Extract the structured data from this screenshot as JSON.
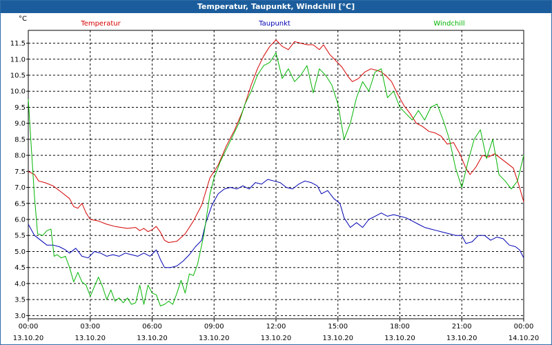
{
  "window": {
    "title": "Temperatur, Taupunkt, Windchill [°C]"
  },
  "colors": {
    "titlebar": "#1b5d9c",
    "temperatur": "#d40000",
    "taupunkt": "#0000b4",
    "windchill": "#00b400",
    "grid": "#000000"
  },
  "chart_data": {
    "type": "line",
    "title": "Temperatur, Taupunkt, Windchill [°C]",
    "ylabel": "°C",
    "xlabel": "",
    "ylim": [
      2.9,
      11.9
    ],
    "xlim": [
      0,
      24
    ],
    "grid": true,
    "legend_placement": "top",
    "y_ticks": [
      "3.0",
      "3.5",
      "4.0",
      "4.5",
      "5.0",
      "5.5",
      "6.0",
      "6.5",
      "7.0",
      "7.5",
      "8.0",
      "8.5",
      "9.0",
      "9.5",
      "10.0",
      "10.5",
      "11.0",
      "11.5"
    ],
    "x_ticks": [
      {
        "time": "00:00",
        "date": "13.10.20"
      },
      {
        "time": "03:00",
        "date": "13.10.20"
      },
      {
        "time": "06:00",
        "date": "13.10.20"
      },
      {
        "time": "09:00",
        "date": "13.10.20"
      },
      {
        "time": "12:00",
        "date": "13.10.20"
      },
      {
        "time": "15:00",
        "date": "13.10.20"
      },
      {
        "time": "18:00",
        "date": "13.10.20"
      },
      {
        "time": "21:00",
        "date": "13.10.20"
      },
      {
        "time": "00:00",
        "date": "14.10.20"
      }
    ],
    "series": [
      {
        "name": "Temperatur",
        "color": "#d40000",
        "points": [
          [
            0,
            7.5
          ],
          [
            0.3,
            7.4
          ],
          [
            0.5,
            7.2
          ],
          [
            0.8,
            7.15
          ],
          [
            1.2,
            7.05
          ],
          [
            1.6,
            6.85
          ],
          [
            2.0,
            6.65
          ],
          [
            2.2,
            6.4
          ],
          [
            2.4,
            6.35
          ],
          [
            2.6,
            6.5
          ],
          [
            2.8,
            6.2
          ],
          [
            3.0,
            6.0
          ],
          [
            3.4,
            5.95
          ],
          [
            3.8,
            5.85
          ],
          [
            4.2,
            5.78
          ],
          [
            4.8,
            5.72
          ],
          [
            5.2,
            5.75
          ],
          [
            5.4,
            5.65
          ],
          [
            5.6,
            5.72
          ],
          [
            5.8,
            5.62
          ],
          [
            6.0,
            5.68
          ],
          [
            6.2,
            5.78
          ],
          [
            6.4,
            5.6
          ],
          [
            6.6,
            5.35
          ],
          [
            6.8,
            5.28
          ],
          [
            7.2,
            5.32
          ],
          [
            7.6,
            5.55
          ],
          [
            8.0,
            5.95
          ],
          [
            8.4,
            6.45
          ],
          [
            8.8,
            7.3
          ],
          [
            9.2,
            7.7
          ],
          [
            9.6,
            8.3
          ],
          [
            10.0,
            8.8
          ],
          [
            10.4,
            9.4
          ],
          [
            10.8,
            10.2
          ],
          [
            11.1,
            10.7
          ],
          [
            11.4,
            11.1
          ],
          [
            11.7,
            11.4
          ],
          [
            12.0,
            11.6
          ],
          [
            12.3,
            11.4
          ],
          [
            12.6,
            11.3
          ],
          [
            12.9,
            11.55
          ],
          [
            13.2,
            11.5
          ],
          [
            13.5,
            11.45
          ],
          [
            13.8,
            11.45
          ],
          [
            14.1,
            11.3
          ],
          [
            14.3,
            11.45
          ],
          [
            14.6,
            11.15
          ],
          [
            14.9,
            10.95
          ],
          [
            15.2,
            10.75
          ],
          [
            15.5,
            10.45
          ],
          [
            15.7,
            10.3
          ],
          [
            16.0,
            10.4
          ],
          [
            16.3,
            10.6
          ],
          [
            16.6,
            10.7
          ],
          [
            16.9,
            10.65
          ],
          [
            17.1,
            10.6
          ],
          [
            17.3,
            10.5
          ],
          [
            17.6,
            10.3
          ],
          [
            17.9,
            9.9
          ],
          [
            18.2,
            9.55
          ],
          [
            18.5,
            9.3
          ],
          [
            18.8,
            9.0
          ],
          [
            19.1,
            8.9
          ],
          [
            19.4,
            8.75
          ],
          [
            19.7,
            8.7
          ],
          [
            20.0,
            8.6
          ],
          [
            20.3,
            8.35
          ],
          [
            20.6,
            8.4
          ],
          [
            20.9,
            8.05
          ],
          [
            21.2,
            7.6
          ],
          [
            21.4,
            7.4
          ],
          [
            21.7,
            7.65
          ],
          [
            22.0,
            8.0
          ],
          [
            22.3,
            7.95
          ],
          [
            22.6,
            8.05
          ],
          [
            22.9,
            7.9
          ],
          [
            23.2,
            7.75
          ],
          [
            23.5,
            7.6
          ],
          [
            23.8,
            7.0
          ],
          [
            24.0,
            6.55
          ]
        ]
      },
      {
        "name": "Taupunkt",
        "color": "#0000b4",
        "points": [
          [
            0,
            5.85
          ],
          [
            0.3,
            5.5
          ],
          [
            0.6,
            5.35
          ],
          [
            0.9,
            5.2
          ],
          [
            1.2,
            5.2
          ],
          [
            1.5,
            5.15
          ],
          [
            1.8,
            5.05
          ],
          [
            2.0,
            4.95
          ],
          [
            2.3,
            5.1
          ],
          [
            2.6,
            4.85
          ],
          [
            2.9,
            4.8
          ],
          [
            3.2,
            5.0
          ],
          [
            3.5,
            4.95
          ],
          [
            3.8,
            4.85
          ],
          [
            4.1,
            4.9
          ],
          [
            4.4,
            4.85
          ],
          [
            4.7,
            4.95
          ],
          [
            5.0,
            4.9
          ],
          [
            5.3,
            4.85
          ],
          [
            5.6,
            4.95
          ],
          [
            5.9,
            4.85
          ],
          [
            6.2,
            5.05
          ],
          [
            6.4,
            4.75
          ],
          [
            6.6,
            4.5
          ],
          [
            6.9,
            4.5
          ],
          [
            7.2,
            4.55
          ],
          [
            7.5,
            4.7
          ],
          [
            7.8,
            4.9
          ],
          [
            8.1,
            5.15
          ],
          [
            8.4,
            5.35
          ],
          [
            8.6,
            5.9
          ],
          [
            8.9,
            6.45
          ],
          [
            9.2,
            6.8
          ],
          [
            9.5,
            6.95
          ],
          [
            9.8,
            7.0
          ],
          [
            10.1,
            6.95
          ],
          [
            10.4,
            7.05
          ],
          [
            10.7,
            6.95
          ],
          [
            11.0,
            7.15
          ],
          [
            11.3,
            7.1
          ],
          [
            11.6,
            7.25
          ],
          [
            11.9,
            7.2
          ],
          [
            12.2,
            7.15
          ],
          [
            12.5,
            7.0
          ],
          [
            12.8,
            6.95
          ],
          [
            13.1,
            7.1
          ],
          [
            13.4,
            7.2
          ],
          [
            13.7,
            7.15
          ],
          [
            14.0,
            7.05
          ],
          [
            14.2,
            6.8
          ],
          [
            14.5,
            6.9
          ],
          [
            14.8,
            6.65
          ],
          [
            15.1,
            6.5
          ],
          [
            15.3,
            6.05
          ],
          [
            15.6,
            5.75
          ],
          [
            15.9,
            5.9
          ],
          [
            16.2,
            5.75
          ],
          [
            16.5,
            6.0
          ],
          [
            16.8,
            6.1
          ],
          [
            17.1,
            6.2
          ],
          [
            17.4,
            6.1
          ],
          [
            17.7,
            6.15
          ],
          [
            18.0,
            6.1
          ],
          [
            18.3,
            6.05
          ],
          [
            18.6,
            5.95
          ],
          [
            18.9,
            5.85
          ],
          [
            19.2,
            5.75
          ],
          [
            19.5,
            5.7
          ],
          [
            19.8,
            5.65
          ],
          [
            20.1,
            5.6
          ],
          [
            20.4,
            5.55
          ],
          [
            20.7,
            5.5
          ],
          [
            21.0,
            5.5
          ],
          [
            21.2,
            5.25
          ],
          [
            21.5,
            5.3
          ],
          [
            21.8,
            5.5
          ],
          [
            22.1,
            5.5
          ],
          [
            22.4,
            5.35
          ],
          [
            22.7,
            5.45
          ],
          [
            23.0,
            5.4
          ],
          [
            23.3,
            5.2
          ],
          [
            23.6,
            5.15
          ],
          [
            23.8,
            5.05
          ],
          [
            24.0,
            4.8
          ]
        ]
      },
      {
        "name": "Windchill",
        "color": "#00b400",
        "points": [
          [
            0,
            9.75
          ],
          [
            0.15,
            8.2
          ],
          [
            0.3,
            6.7
          ],
          [
            0.45,
            5.55
          ],
          [
            0.7,
            5.5
          ],
          [
            0.9,
            5.65
          ],
          [
            1.1,
            5.7
          ],
          [
            1.25,
            4.85
          ],
          [
            1.4,
            4.9
          ],
          [
            1.6,
            4.8
          ],
          [
            1.8,
            4.85
          ],
          [
            2.0,
            4.5
          ],
          [
            2.2,
            4.05
          ],
          [
            2.4,
            4.35
          ],
          [
            2.6,
            4.05
          ],
          [
            2.8,
            3.95
          ],
          [
            3.0,
            3.6
          ],
          [
            3.2,
            3.9
          ],
          [
            3.4,
            4.2
          ],
          [
            3.6,
            3.9
          ],
          [
            3.8,
            3.5
          ],
          [
            4.0,
            3.8
          ],
          [
            4.2,
            3.45
          ],
          [
            4.4,
            3.55
          ],
          [
            4.6,
            3.4
          ],
          [
            4.8,
            3.55
          ],
          [
            5.0,
            3.35
          ],
          [
            5.2,
            3.4
          ],
          [
            5.4,
            3.95
          ],
          [
            5.6,
            3.35
          ],
          [
            5.8,
            3.95
          ],
          [
            6.0,
            3.7
          ],
          [
            6.2,
            3.65
          ],
          [
            6.4,
            3.3
          ],
          [
            6.6,
            3.35
          ],
          [
            6.8,
            3.45
          ],
          [
            7.0,
            3.35
          ],
          [
            7.2,
            3.7
          ],
          [
            7.4,
            4.1
          ],
          [
            7.6,
            3.7
          ],
          [
            7.8,
            4.3
          ],
          [
            8.0,
            4.25
          ],
          [
            8.2,
            4.6
          ],
          [
            8.5,
            5.5
          ],
          [
            8.8,
            6.8
          ],
          [
            9.0,
            7.3
          ],
          [
            9.3,
            7.8
          ],
          [
            9.6,
            8.2
          ],
          [
            9.9,
            8.6
          ],
          [
            10.2,
            9.0
          ],
          [
            10.5,
            9.6
          ],
          [
            10.8,
            10.0
          ],
          [
            11.1,
            10.5
          ],
          [
            11.4,
            10.8
          ],
          [
            11.7,
            10.9
          ],
          [
            12.0,
            11.2
          ],
          [
            12.3,
            10.4
          ],
          [
            12.6,
            10.7
          ],
          [
            12.9,
            10.3
          ],
          [
            13.2,
            10.5
          ],
          [
            13.5,
            10.8
          ],
          [
            13.8,
            9.95
          ],
          [
            14.1,
            10.7
          ],
          [
            14.4,
            10.5
          ],
          [
            14.7,
            10.2
          ],
          [
            15.0,
            9.6
          ],
          [
            15.3,
            8.5
          ],
          [
            15.6,
            9.0
          ],
          [
            15.9,
            9.8
          ],
          [
            16.2,
            10.3
          ],
          [
            16.5,
            10.0
          ],
          [
            16.8,
            10.6
          ],
          [
            17.1,
            10.7
          ],
          [
            17.4,
            9.8
          ],
          [
            17.7,
            10.0
          ],
          [
            18.0,
            9.5
          ],
          [
            18.3,
            9.3
          ],
          [
            18.6,
            9.1
          ],
          [
            18.9,
            9.4
          ],
          [
            19.2,
            9.1
          ],
          [
            19.5,
            9.5
          ],
          [
            19.8,
            9.6
          ],
          [
            20.1,
            9.1
          ],
          [
            20.4,
            8.5
          ],
          [
            20.7,
            7.6
          ],
          [
            21.0,
            7.0
          ],
          [
            21.3,
            7.8
          ],
          [
            21.6,
            8.5
          ],
          [
            21.9,
            8.8
          ],
          [
            22.2,
            7.9
          ],
          [
            22.5,
            8.5
          ],
          [
            22.8,
            7.4
          ],
          [
            23.1,
            7.2
          ],
          [
            23.4,
            6.95
          ],
          [
            23.7,
            7.2
          ],
          [
            24.0,
            8.0
          ]
        ]
      }
    ]
  }
}
